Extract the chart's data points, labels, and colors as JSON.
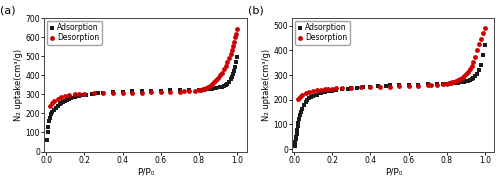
{
  "panel_a": {
    "label": "(a)",
    "ylabel": "N₂ uptake(cm³/g)",
    "xlabel": "P/P₀",
    "ylim": [
      0,
      700
    ],
    "xlim": [
      -0.01,
      1.05
    ],
    "yticks": [
      0,
      100,
      200,
      300,
      400,
      500,
      600,
      700
    ],
    "xticks": [
      0.0,
      0.2,
      0.4,
      0.6,
      0.8,
      1.0
    ],
    "adsorption_x": [
      0.005,
      0.008,
      0.011,
      0.015,
      0.02,
      0.025,
      0.03,
      0.04,
      0.05,
      0.06,
      0.07,
      0.08,
      0.09,
      0.1,
      0.11,
      0.12,
      0.13,
      0.15,
      0.17,
      0.19,
      0.21,
      0.24,
      0.27,
      0.3,
      0.35,
      0.4,
      0.45,
      0.5,
      0.55,
      0.6,
      0.65,
      0.7,
      0.75,
      0.8,
      0.83,
      0.85,
      0.87,
      0.89,
      0.91,
      0.92,
      0.93,
      0.94,
      0.95,
      0.96,
      0.97,
      0.975,
      0.98,
      0.985,
      0.99,
      0.995,
      1.0
    ],
    "adsorption_y": [
      60,
      100,
      130,
      158,
      178,
      195,
      207,
      220,
      231,
      240,
      248,
      255,
      261,
      267,
      271,
      276,
      280,
      286,
      291,
      295,
      299,
      304,
      307,
      310,
      313,
      315,
      317,
      318,
      319,
      320,
      321,
      322,
      323,
      324,
      326,
      328,
      330,
      333,
      337,
      340,
      344,
      350,
      357,
      368,
      382,
      392,
      405,
      425,
      445,
      470,
      495
    ],
    "desorption_x": [
      1.0,
      0.995,
      0.99,
      0.985,
      0.98,
      0.975,
      0.97,
      0.96,
      0.95,
      0.94,
      0.93,
      0.92,
      0.91,
      0.9,
      0.89,
      0.88,
      0.87,
      0.86,
      0.85,
      0.84,
      0.83,
      0.82,
      0.81,
      0.8,
      0.78,
      0.75,
      0.72,
      0.7,
      0.65,
      0.6,
      0.55,
      0.5,
      0.45,
      0.4,
      0.35,
      0.3,
      0.25,
      0.2,
      0.17,
      0.15,
      0.12,
      0.1,
      0.08,
      0.06,
      0.04,
      0.03,
      0.02
    ],
    "desorption_y": [
      645,
      620,
      600,
      575,
      555,
      535,
      515,
      492,
      472,
      452,
      432,
      415,
      400,
      385,
      375,
      364,
      355,
      346,
      340,
      335,
      330,
      327,
      325,
      323,
      320,
      318,
      316,
      315,
      313,
      312,
      311,
      310,
      310,
      309,
      308,
      307,
      306,
      304,
      302,
      300,
      296,
      292,
      287,
      278,
      265,
      254,
      238
    ],
    "adsorption_color": "#1a1a1a",
    "desorption_color": "#cc0000",
    "marker_size": 3.5
  },
  "panel_b": {
    "label": "(b)",
    "ylabel": "N₂ uptake(cm³/g)",
    "xlabel": "P/P₀",
    "ylim": [
      -10,
      530
    ],
    "xlim": [
      -0.01,
      1.05
    ],
    "yticks": [
      0,
      100,
      200,
      300,
      400,
      500
    ],
    "xticks": [
      0.0,
      0.2,
      0.4,
      0.6,
      0.8,
      1.0
    ],
    "adsorption_x": [
      0.003,
      0.005,
      0.007,
      0.009,
      0.011,
      0.013,
      0.016,
      0.019,
      0.022,
      0.026,
      0.03,
      0.035,
      0.04,
      0.05,
      0.06,
      0.07,
      0.08,
      0.09,
      0.1,
      0.12,
      0.14,
      0.16,
      0.18,
      0.2,
      0.22,
      0.25,
      0.28,
      0.3,
      0.33,
      0.36,
      0.4,
      0.44,
      0.48,
      0.5,
      0.55,
      0.6,
      0.65,
      0.7,
      0.75,
      0.78,
      0.8,
      0.82,
      0.84,
      0.85,
      0.86,
      0.87,
      0.88,
      0.89,
      0.9,
      0.91,
      0.92,
      0.93,
      0.94,
      0.95,
      0.96,
      0.97,
      0.98,
      0.99,
      1.0
    ],
    "adsorption_y": [
      13,
      20,
      30,
      40,
      50,
      62,
      76,
      92,
      107,
      123,
      138,
      152,
      163,
      178,
      190,
      199,
      206,
      211,
      215,
      221,
      226,
      230,
      234,
      237,
      239,
      242,
      245,
      247,
      249,
      251,
      253,
      255,
      257,
      258,
      259,
      260,
      261,
      262,
      263,
      264,
      265,
      266,
      267,
      268,
      269,
      270,
      271,
      272,
      274,
      276,
      279,
      283,
      288,
      296,
      305,
      320,
      342,
      380,
      420
    ],
    "desorption_x": [
      1.0,
      0.99,
      0.98,
      0.97,
      0.96,
      0.95,
      0.94,
      0.93,
      0.92,
      0.91,
      0.9,
      0.89,
      0.88,
      0.87,
      0.86,
      0.85,
      0.84,
      0.83,
      0.82,
      0.81,
      0.8,
      0.78,
      0.75,
      0.72,
      0.7,
      0.65,
      0.6,
      0.55,
      0.5,
      0.45,
      0.4,
      0.35,
      0.3,
      0.25,
      0.22,
      0.2,
      0.18,
      0.16,
      0.14,
      0.12,
      0.1,
      0.08,
      0.06,
      0.04,
      0.03,
      0.02
    ],
    "desorption_y": [
      490,
      470,
      448,
      425,
      400,
      375,
      355,
      338,
      325,
      314,
      304,
      296,
      289,
      283,
      279,
      276,
      273,
      270,
      268,
      266,
      265,
      263,
      261,
      259,
      258,
      256,
      255,
      254,
      253,
      252,
      251,
      250,
      249,
      247,
      246,
      245,
      244,
      243,
      241,
      239,
      237,
      233,
      228,
      220,
      213,
      203
    ],
    "adsorption_color": "#1a1a1a",
    "desorption_color": "#cc0000",
    "marker_size": 3.5
  },
  "figure_bg": "#ffffff",
  "axes_bg": "#ffffff"
}
